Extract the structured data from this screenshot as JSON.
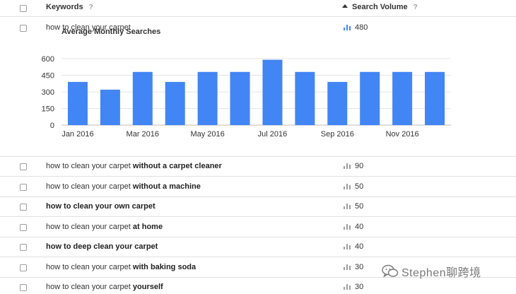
{
  "header": {
    "keywords_label": "Keywords",
    "volume_label": "Search Volume",
    "help_glyph": "?"
  },
  "expanded_row": {
    "keyword": "how to clean your carpet",
    "volume": "480",
    "chart_icon_color": "#4285f4"
  },
  "chart_data": {
    "type": "bar",
    "title": "Average Monthly Searches",
    "categories": [
      "Jan 2016",
      "Feb 2016",
      "Mar 2016",
      "Apr 2016",
      "May 2016",
      "Jun 2016",
      "Jul 2016",
      "Aug 2016",
      "Sep 2016",
      "Oct 2016",
      "Nov 2016",
      "Dec 2016"
    ],
    "tick_labels": [
      "Jan 2016",
      "Mar 2016",
      "May 2016",
      "Jul 2016",
      "Sep 2016",
      "Nov 2016"
    ],
    "values": [
      390,
      320,
      480,
      390,
      480,
      480,
      590,
      480,
      390,
      480,
      480,
      480
    ],
    "yticks": [
      0,
      150,
      300,
      450,
      600
    ],
    "ylim": [
      0,
      600
    ],
    "grid": true,
    "bar_color": "#4285f4",
    "xlabel": "",
    "ylabel": ""
  },
  "rows": [
    {
      "plain": "how to clean your carpet ",
      "bold": "without a carpet cleaner",
      "volume": "90"
    },
    {
      "plain": "how to clean your carpet ",
      "bold": "without a machine",
      "volume": "50"
    },
    {
      "plain": "",
      "bold": "how to clean your own carpet",
      "volume": "50"
    },
    {
      "plain": "how to clean your carpet ",
      "bold": "at home",
      "volume": "40"
    },
    {
      "plain": "",
      "bold": "how to deep clean your carpet",
      "volume": "40"
    },
    {
      "plain": "how to clean your carpet ",
      "bold": "with baking soda",
      "volume": "30"
    },
    {
      "plain": "how to clean your carpet ",
      "bold": "yourself",
      "volume": "30"
    }
  ],
  "watermark": {
    "text": "Stephen聊跨境",
    "icon": "wechat-icon"
  }
}
